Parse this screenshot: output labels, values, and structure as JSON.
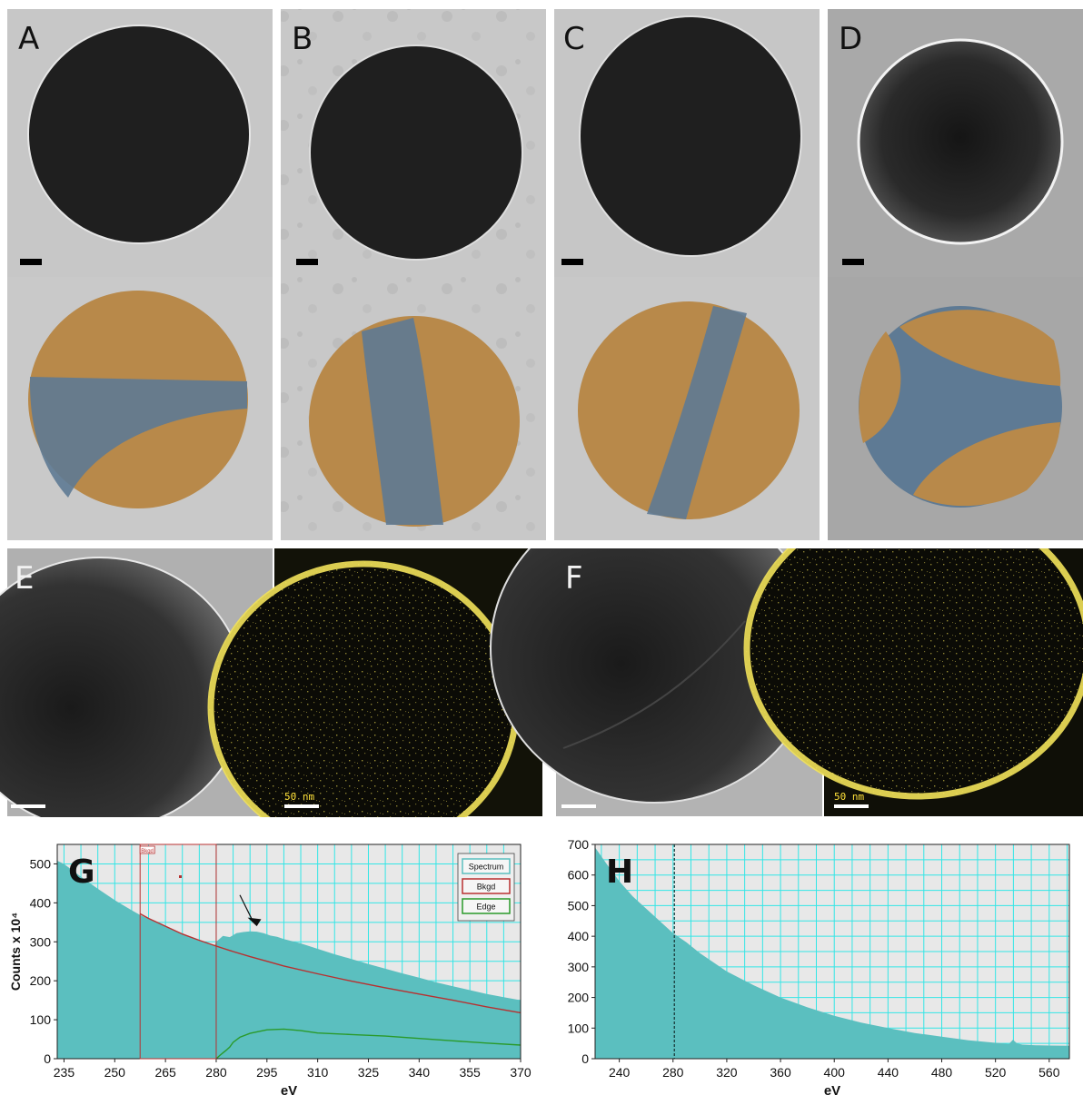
{
  "figure": {
    "panels": {
      "A": {
        "letter": "A"
      },
      "B": {
        "letter": "B"
      },
      "C": {
        "letter": "C"
      },
      "D": {
        "letter": "D"
      },
      "E": {
        "letter": "E",
        "map_scale_label": "50 nm"
      },
      "F": {
        "letter": "F",
        "map_scale_label": "50 nm"
      }
    },
    "colors": {
      "tem_background": "#c4c4c4",
      "particle": "#1e1e1e",
      "orange_domain": "#b8894a",
      "blue_domain": "#5e7a94",
      "map_background": "#0b0b06",
      "map_signal": "#f2e25a",
      "spectrum_fill": "#5bbfbf",
      "background_fit": "#b83030",
      "edge_signal": "#2a9a2a",
      "plot_area": "#e8e8e8",
      "grid": "#33e6e6"
    }
  },
  "chart_data": [
    {
      "id": "G",
      "type": "area",
      "panel_label": "G",
      "xlabel": "eV",
      "ylabel": "Counts x 10⁴",
      "xlim": [
        233,
        370
      ],
      "ylim": [
        0,
        550
      ],
      "xticks": [
        235,
        250,
        265,
        280,
        295,
        310,
        325,
        340,
        355,
        370
      ],
      "yticks": [
        0,
        100,
        200,
        300,
        400,
        500
      ],
      "legend": {
        "placement": "top-right",
        "entries": [
          "Spectrum",
          "Bkgd",
          "Edge"
        ]
      },
      "window_label": "Bkgd",
      "annotations": [
        "arrow pointing at peak near 290 eV"
      ],
      "window_markers_eV": [
        257.5,
        280
      ],
      "series": [
        {
          "name": "Spectrum",
          "style": "area",
          "x": [
            233,
            235,
            240,
            245,
            250,
            255,
            257.5,
            260,
            265,
            270,
            275,
            279.5,
            280,
            282,
            284,
            286,
            288,
            290,
            292,
            294,
            296,
            298,
            300,
            305,
            310,
            315,
            320,
            325,
            330,
            335,
            340,
            345,
            350,
            355,
            360,
            365,
            370
          ],
          "y": [
            508,
            500,
            467,
            436,
            407,
            381,
            369,
            359,
            339,
            320,
            303,
            290,
            300,
            315,
            312,
            322,
            325,
            327,
            326,
            322,
            316,
            313,
            307,
            296,
            282,
            268,
            256,
            243,
            231,
            219,
            208,
            196,
            186,
            176,
            166,
            158,
            150
          ]
        },
        {
          "name": "Bkgd",
          "style": "line",
          "x": [
            257.5,
            260,
            265,
            270,
            275,
            280,
            285,
            290,
            295,
            300,
            310,
            320,
            330,
            340,
            350,
            360,
            370
          ],
          "y": [
            372,
            360,
            340,
            320,
            304,
            289,
            275,
            262,
            250,
            238,
            218,
            199,
            182,
            166,
            150,
            133,
            118
          ]
        },
        {
          "name": "Edge",
          "style": "line",
          "x": [
            280,
            281,
            282,
            283,
            284,
            285,
            287,
            290,
            295,
            300,
            305,
            310,
            320,
            330,
            340,
            350,
            360,
            370
          ],
          "y": [
            0,
            8,
            15,
            22,
            30,
            42,
            55,
            65,
            74,
            76,
            72,
            66,
            62,
            58,
            52,
            46,
            40,
            35
          ]
        }
      ]
    },
    {
      "id": "H",
      "type": "area",
      "panel_label": "H",
      "xlabel": "eV",
      "ylabel": "",
      "xlim": [
        222,
        575
      ],
      "ylim": [
        0,
        700
      ],
      "xticks": [
        240,
        280,
        320,
        360,
        400,
        440,
        480,
        520,
        560
      ],
      "yticks": [
        0,
        100,
        200,
        300,
        400,
        500,
        600,
        700
      ],
      "marker_eV": 281,
      "series": [
        {
          "name": "Spectrum",
          "style": "area",
          "x": [
            222,
            230,
            240,
            250,
            260,
            270,
            280,
            290,
            300,
            320,
            340,
            360,
            380,
            400,
            420,
            440,
            460,
            480,
            500,
            520,
            530,
            533,
            536,
            540,
            550,
            560,
            575
          ],
          "y": [
            690,
            640,
            580,
            530,
            490,
            450,
            410,
            380,
            345,
            285,
            240,
            200,
            168,
            140,
            118,
            100,
            84,
            72,
            60,
            52,
            48,
            62,
            50,
            46,
            44,
            43,
            42
          ]
        }
      ]
    }
  ]
}
